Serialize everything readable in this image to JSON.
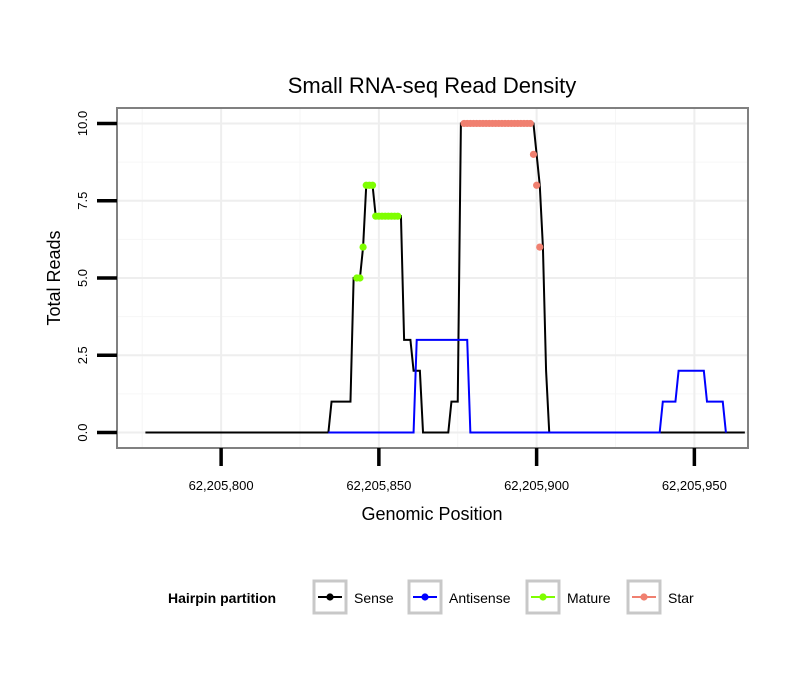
{
  "chart_data": {
    "type": "line",
    "title": "Small RNA-seq Read Density",
    "xlabel": "Genomic Position",
    "ylabel": "Total Reads",
    "xlim": [
      62205767,
      62205967
    ],
    "ylim": [
      -0.5,
      10.5
    ],
    "x_ticks": [
      62205800,
      62205850,
      62205900,
      62205950
    ],
    "x_tick_labels": [
      "62,205,800",
      "62,205,850",
      "62,205,900",
      "62,205,950"
    ],
    "y_ticks": [
      0,
      2.5,
      5,
      7.5,
      10
    ],
    "y_tick_labels": [
      "0.0",
      "2.5",
      "5.0",
      "7.5",
      "10.0"
    ],
    "grid": true,
    "legend": {
      "title": "Hairpin partition",
      "position": "bottom",
      "entries": [
        "Sense",
        "Antisense",
        "Mature",
        "Star"
      ]
    },
    "series": [
      {
        "name": "Sense",
        "kind": "line",
        "color": "#000000",
        "points": [
          [
            62205776,
            0
          ],
          [
            62205834,
            0
          ],
          [
            62205835,
            1
          ],
          [
            62205841,
            1
          ],
          [
            62205842,
            5
          ],
          [
            62205844,
            5
          ],
          [
            62205845,
            6
          ],
          [
            62205846,
            8
          ],
          [
            62205848,
            8
          ],
          [
            62205849,
            7
          ],
          [
            62205857,
            7
          ],
          [
            62205858,
            3
          ],
          [
            62205860,
            3
          ],
          [
            62205861,
            2
          ],
          [
            62205863,
            2
          ],
          [
            62205864,
            0
          ],
          [
            62205872,
            0
          ],
          [
            62205873,
            1
          ],
          [
            62205875,
            1
          ],
          [
            62205876,
            10
          ],
          [
            62205899,
            10
          ],
          [
            62205900,
            9
          ],
          [
            62205901,
            8
          ],
          [
            62205902,
            6
          ],
          [
            62205903,
            2
          ],
          [
            62205904,
            0
          ],
          [
            62205966,
            0
          ]
        ]
      },
      {
        "name": "Antisense",
        "kind": "line",
        "color": "#0000ff",
        "points": [
          [
            62205834,
            0
          ],
          [
            62205861,
            0
          ],
          [
            62205862,
            3
          ],
          [
            62205878,
            3
          ],
          [
            62205879,
            0
          ],
          [
            62205939,
            0
          ],
          [
            62205940,
            1
          ],
          [
            62205944,
            1
          ],
          [
            62205945,
            2
          ],
          [
            62205953,
            2
          ],
          [
            62205954,
            1
          ],
          [
            62205959,
            1
          ],
          [
            62205960,
            0
          ]
        ]
      },
      {
        "name": "Mature",
        "kind": "points",
        "color": "#7fff00",
        "points": [
          [
            62205843,
            5
          ],
          [
            62205844,
            5
          ],
          [
            62205845,
            6
          ],
          [
            62205846,
            8
          ],
          [
            62205847,
            8
          ],
          [
            62205848,
            8
          ],
          [
            62205849,
            7
          ],
          [
            62205850,
            7
          ],
          [
            62205851,
            7
          ],
          [
            62205852,
            7
          ],
          [
            62205853,
            7
          ],
          [
            62205854,
            7
          ],
          [
            62205855,
            7
          ],
          [
            62205856,
            7
          ]
        ]
      },
      {
        "name": "Star",
        "kind": "points",
        "color": "#f08070",
        "points": [
          [
            62205877,
            10
          ],
          [
            62205878,
            10
          ],
          [
            62205879,
            10
          ],
          [
            62205880,
            10
          ],
          [
            62205881,
            10
          ],
          [
            62205882,
            10
          ],
          [
            62205883,
            10
          ],
          [
            62205884,
            10
          ],
          [
            62205885,
            10
          ],
          [
            62205886,
            10
          ],
          [
            62205887,
            10
          ],
          [
            62205888,
            10
          ],
          [
            62205889,
            10
          ],
          [
            62205890,
            10
          ],
          [
            62205891,
            10
          ],
          [
            62205892,
            10
          ],
          [
            62205893,
            10
          ],
          [
            62205894,
            10
          ],
          [
            62205895,
            10
          ],
          [
            62205896,
            10
          ],
          [
            62205897,
            10
          ],
          [
            62205898,
            10
          ],
          [
            62205899,
            9
          ],
          [
            62205900,
            8
          ],
          [
            62205901,
            6
          ]
        ]
      }
    ]
  }
}
